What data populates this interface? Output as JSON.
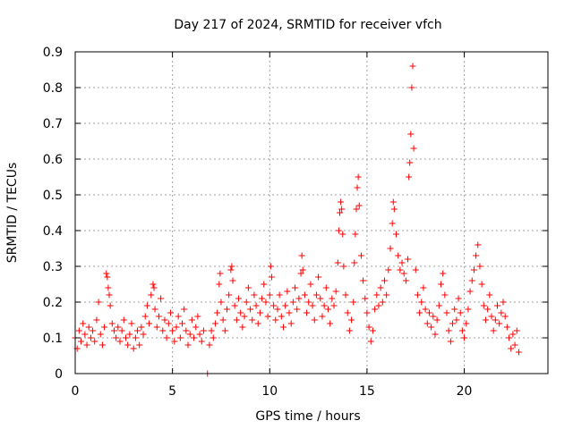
{
  "chart_data": {
    "type": "scatter",
    "title": "Day 217 of 2024, SRMTID for receiver vfch",
    "xlabel": "GPS time / hours",
    "ylabel": "SRMTID / TECUs",
    "xlim": [
      0,
      24.3
    ],
    "ylim": [
      0,
      0.9
    ],
    "xticks": [
      0,
      5,
      10,
      15,
      20
    ],
    "xtick_labels": [
      "0",
      "5",
      "10",
      "15",
      "20"
    ],
    "yticks": [
      0,
      0.1,
      0.2,
      0.3,
      0.4,
      0.5,
      0.6,
      0.7,
      0.8,
      0.9
    ],
    "ytick_labels": [
      "0",
      "0.1",
      "0.2",
      "0.3",
      "0.4",
      "0.5",
      "0.6",
      "0.7",
      "0.8",
      "0.9"
    ],
    "grid": true,
    "marker": "+",
    "color": "#ff0000",
    "series": [
      {
        "name": "SRMTID",
        "points": [
          [
            0.0,
            0.1
          ],
          [
            0.1,
            0.07
          ],
          [
            0.2,
            0.12
          ],
          [
            0.3,
            0.09
          ],
          [
            0.4,
            0.14
          ],
          [
            0.5,
            0.11
          ],
          [
            0.6,
            0.08
          ],
          [
            0.7,
            0.13
          ],
          [
            0.8,
            0.1
          ],
          [
            0.9,
            0.12
          ],
          [
            1.0,
            0.09
          ],
          [
            1.1,
            0.15
          ],
          [
            1.2,
            0.2
          ],
          [
            1.3,
            0.11
          ],
          [
            1.4,
            0.08
          ],
          [
            1.5,
            0.13
          ],
          [
            1.6,
            0.28
          ],
          [
            1.65,
            0.27
          ],
          [
            1.7,
            0.24
          ],
          [
            1.75,
            0.22
          ],
          [
            1.8,
            0.19
          ],
          [
            1.9,
            0.14
          ],
          [
            2.0,
            0.12
          ],
          [
            2.1,
            0.1
          ],
          [
            2.2,
            0.13
          ],
          [
            2.3,
            0.09
          ],
          [
            2.4,
            0.12
          ],
          [
            2.5,
            0.15
          ],
          [
            2.6,
            0.1
          ],
          [
            2.7,
            0.08
          ],
          [
            2.8,
            0.11
          ],
          [
            2.9,
            0.14
          ],
          [
            3.0,
            0.07
          ],
          [
            3.1,
            0.1
          ],
          [
            3.2,
            0.12
          ],
          [
            3.3,
            0.08
          ],
          [
            3.4,
            0.13
          ],
          [
            3.5,
            0.11
          ],
          [
            3.6,
            0.16
          ],
          [
            3.7,
            0.19
          ],
          [
            3.8,
            0.14
          ],
          [
            3.9,
            0.22
          ],
          [
            4.0,
            0.25
          ],
          [
            4.05,
            0.24
          ],
          [
            4.1,
            0.18
          ],
          [
            4.2,
            0.13
          ],
          [
            4.3,
            0.16
          ],
          [
            4.4,
            0.21
          ],
          [
            4.5,
            0.12
          ],
          [
            4.6,
            0.15
          ],
          [
            4.7,
            0.1
          ],
          [
            4.8,
            0.14
          ],
          [
            4.9,
            0.17
          ],
          [
            5.0,
            0.12
          ],
          [
            5.1,
            0.09
          ],
          [
            5.2,
            0.13
          ],
          [
            5.3,
            0.16
          ],
          [
            5.4,
            0.1
          ],
          [
            5.5,
            0.14
          ],
          [
            5.6,
            0.18
          ],
          [
            5.7,
            0.12
          ],
          [
            5.8,
            0.08
          ],
          [
            5.9,
            0.11
          ],
          [
            6.0,
            0.15
          ],
          [
            6.1,
            0.1
          ],
          [
            6.2,
            0.13
          ],
          [
            6.3,
            0.16
          ],
          [
            6.4,
            0.11
          ],
          [
            6.5,
            0.09
          ],
          [
            6.6,
            0.12
          ],
          [
            6.8,
            0.0
          ],
          [
            6.9,
            0.08
          ],
          [
            7.0,
            0.12
          ],
          [
            7.1,
            0.1
          ],
          [
            7.2,
            0.14
          ],
          [
            7.3,
            0.17
          ],
          [
            7.4,
            0.25
          ],
          [
            7.45,
            0.28
          ],
          [
            7.5,
            0.2
          ],
          [
            7.6,
            0.15
          ],
          [
            7.7,
            0.12
          ],
          [
            7.8,
            0.18
          ],
          [
            7.9,
            0.22
          ],
          [
            8.0,
            0.29
          ],
          [
            8.05,
            0.3
          ],
          [
            8.1,
            0.26
          ],
          [
            8.2,
            0.19
          ],
          [
            8.3,
            0.15
          ],
          [
            8.4,
            0.21
          ],
          [
            8.5,
            0.17
          ],
          [
            8.6,
            0.13
          ],
          [
            8.7,
            0.16
          ],
          [
            8.8,
            0.2
          ],
          [
            8.9,
            0.24
          ],
          [
            9.0,
            0.18
          ],
          [
            9.1,
            0.15
          ],
          [
            9.2,
            0.22
          ],
          [
            9.3,
            0.19
          ],
          [
            9.4,
            0.14
          ],
          [
            9.5,
            0.17
          ],
          [
            9.6,
            0.21
          ],
          [
            9.7,
            0.25
          ],
          [
            9.8,
            0.2
          ],
          [
            9.9,
            0.16
          ],
          [
            10.0,
            0.22
          ],
          [
            10.05,
            0.3
          ],
          [
            10.1,
            0.27
          ],
          [
            10.2,
            0.19
          ],
          [
            10.3,
            0.15
          ],
          [
            10.4,
            0.18
          ],
          [
            10.5,
            0.22
          ],
          [
            10.6,
            0.16
          ],
          [
            10.7,
            0.13
          ],
          [
            10.8,
            0.19
          ],
          [
            10.9,
            0.23
          ],
          [
            11.0,
            0.17
          ],
          [
            11.1,
            0.14
          ],
          [
            11.2,
            0.2
          ],
          [
            11.3,
            0.24
          ],
          [
            11.4,
            0.18
          ],
          [
            11.5,
            0.21
          ],
          [
            11.6,
            0.28
          ],
          [
            11.65,
            0.33
          ],
          [
            11.7,
            0.29
          ],
          [
            11.8,
            0.22
          ],
          [
            11.9,
            0.17
          ],
          [
            12.0,
            0.2
          ],
          [
            12.1,
            0.25
          ],
          [
            12.2,
            0.19
          ],
          [
            12.3,
            0.15
          ],
          [
            12.4,
            0.22
          ],
          [
            12.5,
            0.27
          ],
          [
            12.6,
            0.21
          ],
          [
            12.7,
            0.16
          ],
          [
            12.8,
            0.19
          ],
          [
            12.9,
            0.24
          ],
          [
            13.0,
            0.18
          ],
          [
            13.1,
            0.14
          ],
          [
            13.2,
            0.21
          ],
          [
            13.3,
            0.19
          ],
          [
            13.4,
            0.23
          ],
          [
            13.5,
            0.31
          ],
          [
            13.55,
            0.4
          ],
          [
            13.6,
            0.45
          ],
          [
            13.65,
            0.48
          ],
          [
            13.7,
            0.46
          ],
          [
            13.75,
            0.39
          ],
          [
            13.8,
            0.3
          ],
          [
            13.9,
            0.22
          ],
          [
            14.0,
            0.17
          ],
          [
            14.1,
            0.12
          ],
          [
            14.2,
            0.15
          ],
          [
            14.3,
            0.2
          ],
          [
            14.35,
            0.31
          ],
          [
            14.4,
            0.39
          ],
          [
            14.45,
            0.46
          ],
          [
            14.5,
            0.52
          ],
          [
            14.55,
            0.55
          ],
          [
            14.6,
            0.47
          ],
          [
            14.7,
            0.33
          ],
          [
            14.8,
            0.26
          ],
          [
            14.9,
            0.21
          ],
          [
            15.0,
            0.17
          ],
          [
            15.1,
            0.13
          ],
          [
            15.2,
            0.09
          ],
          [
            15.3,
            0.12
          ],
          [
            15.4,
            0.18
          ],
          [
            15.5,
            0.22
          ],
          [
            15.6,
            0.19
          ],
          [
            15.7,
            0.24
          ],
          [
            15.8,
            0.2
          ],
          [
            15.9,
            0.26
          ],
          [
            16.0,
            0.22
          ],
          [
            16.1,
            0.29
          ],
          [
            16.2,
            0.35
          ],
          [
            16.3,
            0.42
          ],
          [
            16.35,
            0.48
          ],
          [
            16.4,
            0.46
          ],
          [
            16.5,
            0.39
          ],
          [
            16.6,
            0.33
          ],
          [
            16.7,
            0.29
          ],
          [
            16.8,
            0.31
          ],
          [
            16.9,
            0.28
          ],
          [
            17.0,
            0.26
          ],
          [
            17.1,
            0.32
          ],
          [
            17.15,
            0.55
          ],
          [
            17.2,
            0.59
          ],
          [
            17.25,
            0.67
          ],
          [
            17.3,
            0.8
          ],
          [
            17.35,
            0.86
          ],
          [
            17.4,
            0.63
          ],
          [
            17.5,
            0.29
          ],
          [
            17.6,
            0.22
          ],
          [
            17.7,
            0.17
          ],
          [
            17.8,
            0.2
          ],
          [
            17.9,
            0.24
          ],
          [
            18.0,
            0.18
          ],
          [
            18.1,
            0.14
          ],
          [
            18.2,
            0.17
          ],
          [
            18.3,
            0.13
          ],
          [
            18.4,
            0.16
          ],
          [
            18.5,
            0.11
          ],
          [
            18.6,
            0.15
          ],
          [
            18.7,
            0.19
          ],
          [
            18.8,
            0.25
          ],
          [
            18.9,
            0.28
          ],
          [
            19.0,
            0.22
          ],
          [
            19.1,
            0.17
          ],
          [
            19.2,
            0.12
          ],
          [
            19.3,
            0.09
          ],
          [
            19.4,
            0.14
          ],
          [
            19.5,
            0.18
          ],
          [
            19.6,
            0.15
          ],
          [
            19.7,
            0.21
          ],
          [
            19.8,
            0.17
          ],
          [
            19.9,
            0.12
          ],
          [
            20.0,
            0.1
          ],
          [
            20.1,
            0.14
          ],
          [
            20.2,
            0.18
          ],
          [
            20.3,
            0.23
          ],
          [
            20.4,
            0.26
          ],
          [
            20.5,
            0.29
          ],
          [
            20.6,
            0.33
          ],
          [
            20.7,
            0.36
          ],
          [
            20.8,
            0.3
          ],
          [
            20.9,
            0.25
          ],
          [
            21.0,
            0.19
          ],
          [
            21.1,
            0.15
          ],
          [
            21.2,
            0.18
          ],
          [
            21.3,
            0.22
          ],
          [
            21.4,
            0.16
          ],
          [
            21.5,
            0.12
          ],
          [
            21.6,
            0.15
          ],
          [
            21.7,
            0.19
          ],
          [
            21.8,
            0.14
          ],
          [
            21.9,
            0.17
          ],
          [
            22.0,
            0.2
          ],
          [
            22.1,
            0.16
          ],
          [
            22.2,
            0.13
          ],
          [
            22.3,
            0.1
          ],
          [
            22.4,
            0.07
          ],
          [
            22.5,
            0.11
          ],
          [
            22.6,
            0.08
          ],
          [
            22.7,
            0.12
          ],
          [
            22.8,
            0.06
          ]
        ]
      }
    ]
  }
}
